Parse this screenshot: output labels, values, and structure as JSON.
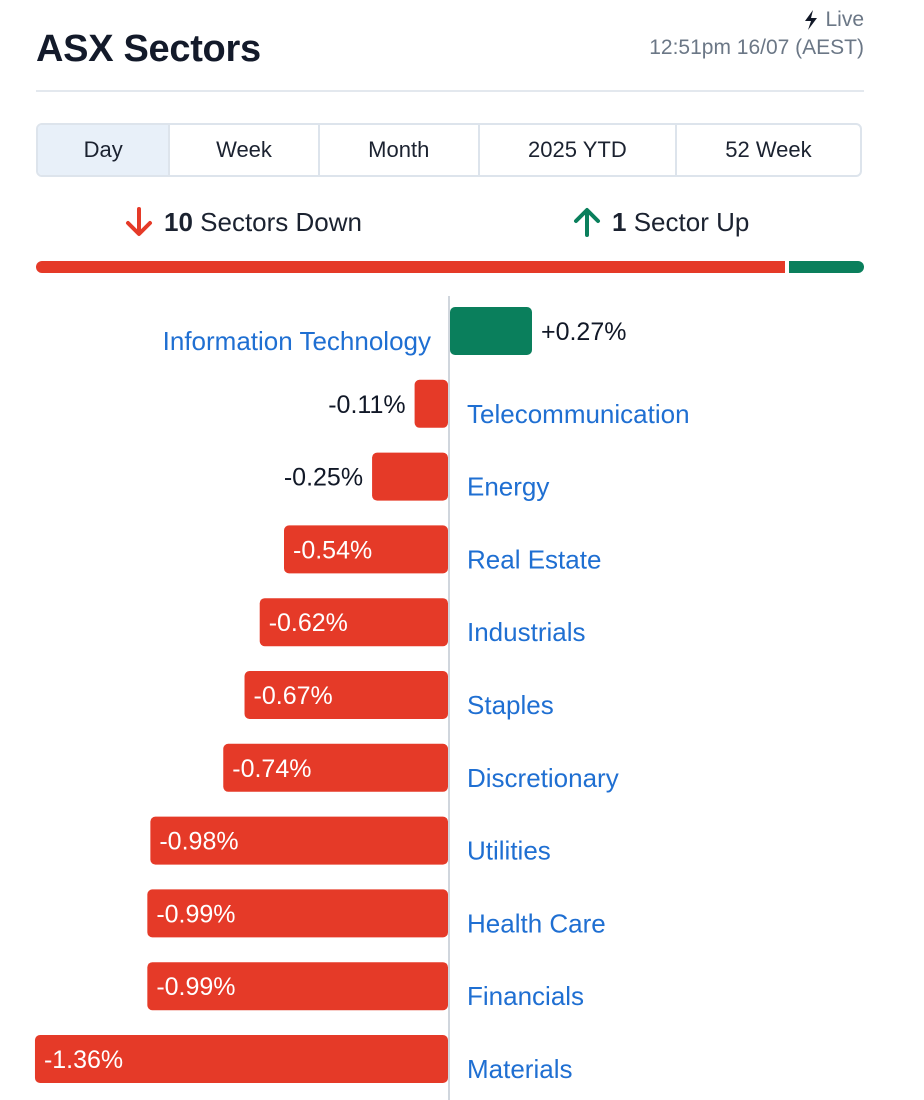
{
  "header": {
    "title": "ASX Sectors",
    "live_label": "Live",
    "timestamp": "12:51pm 16/07 (AEST)",
    "live_icon": "lightning-bolt-icon"
  },
  "tabs": [
    {
      "label": "Day",
      "active": true
    },
    {
      "label": "Week",
      "active": false
    },
    {
      "label": "Month",
      "active": false
    },
    {
      "label": "2025 YTD",
      "active": false
    },
    {
      "label": "52 Week",
      "active": false
    }
  ],
  "summary": {
    "down_count": "10",
    "down_text": "Sectors Down",
    "up_count": "1",
    "up_text": "Sector Up",
    "down_icon": "arrow-down-icon",
    "up_icon": "arrow-up-icon"
  },
  "colors": {
    "negative": "#e53a28",
    "positive": "#0a7f5c",
    "label": "#1f6fd2",
    "active_tab": "#e8f0f9"
  },
  "chart_data": {
    "type": "bar",
    "orientation": "horizontal-diverging",
    "categories": [
      "Information Technology",
      "Telecommunication",
      "Energy",
      "Real Estate",
      "Industrials",
      "Staples",
      "Discretionary",
      "Utilities",
      "Health Care",
      "Financials",
      "Materials"
    ],
    "values": [
      0.27,
      -0.11,
      -0.25,
      -0.54,
      -0.62,
      -0.67,
      -0.74,
      -0.98,
      -0.99,
      -0.99,
      -1.36
    ],
    "value_labels": [
      "+0.27%",
      "-0.11%",
      "-0.25%",
      "-0.54%",
      "-0.62%",
      "-0.67%",
      "-0.74%",
      "-0.98%",
      "-0.99%",
      "-0.99%",
      "-1.36%"
    ],
    "unit": "%"
  }
}
